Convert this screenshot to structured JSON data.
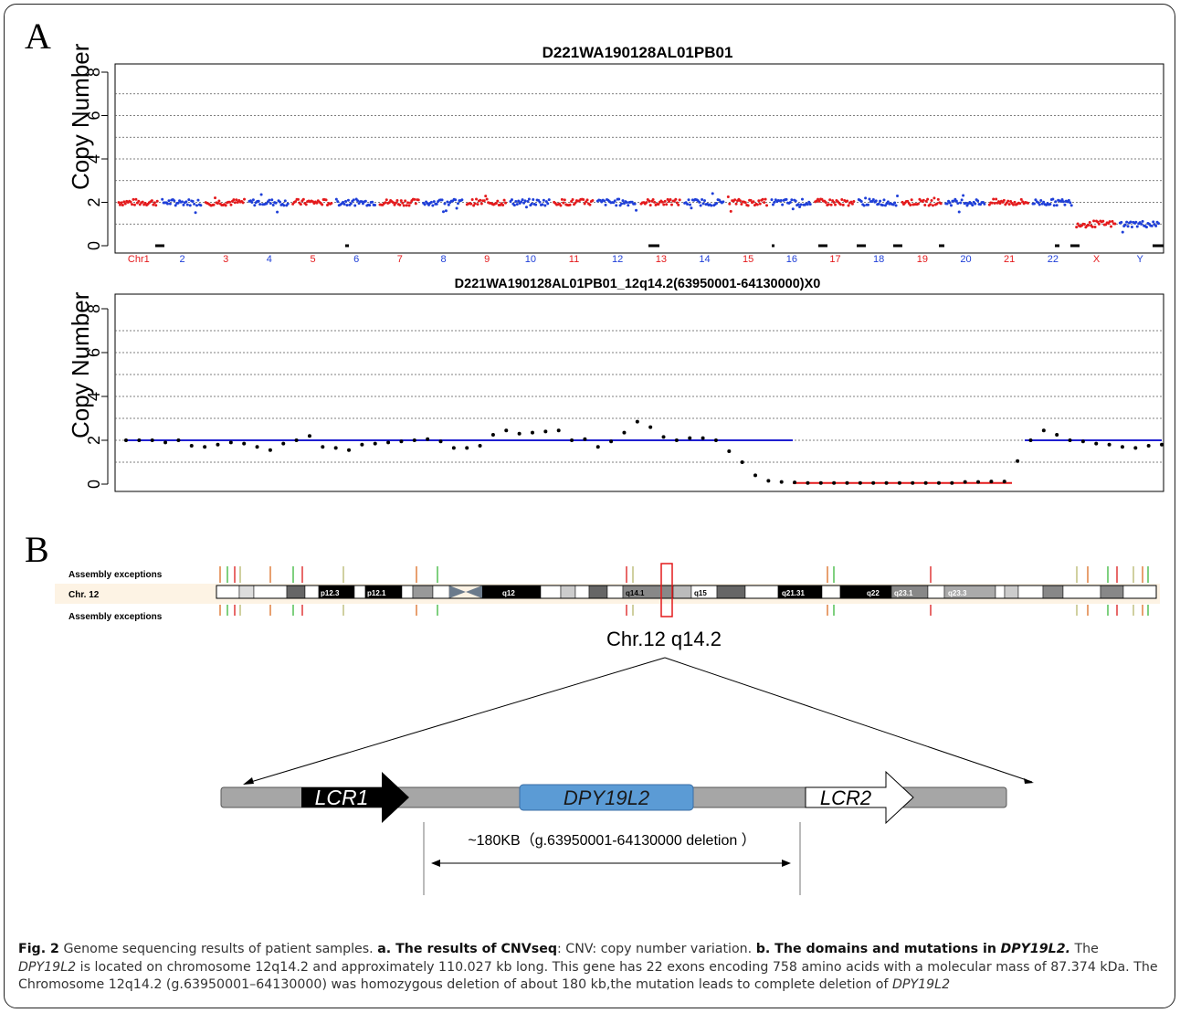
{
  "panel_a": {
    "letter": "A",
    "plot1_title": "D221WA190128AL01PB01",
    "plot2_title": "D221WA190128AL01PB01_12q14.2(63950001-64130000)X0",
    "ylabel": "Copy Number",
    "yticks": [
      "0",
      "2",
      "4",
      "6",
      "8"
    ],
    "chromosome_labels": [
      "Chr1",
      "2",
      "3",
      "4",
      "5",
      "6",
      "7",
      "8",
      "9",
      "10",
      "11",
      "12",
      "13",
      "14",
      "15",
      "16",
      "17",
      "18",
      "19",
      "20",
      "21",
      "22",
      "X",
      "Y"
    ],
    "series_colors": {
      "odd": "#e41a1c",
      "even": "#1f3fd8",
      "segment_normal": "#1f1fd0",
      "segment_deleted": "#e41a1c"
    }
  },
  "chart_data": [
    {
      "type": "scatter",
      "title": "D221WA190128AL01PB01",
      "ylabel": "Copy Number",
      "ylim": [
        0,
        8
      ],
      "categories": [
        "Chr1",
        "2",
        "3",
        "4",
        "5",
        "6",
        "7",
        "8",
        "9",
        "10",
        "11",
        "12",
        "13",
        "14",
        "15",
        "16",
        "17",
        "18",
        "19",
        "20",
        "21",
        "22",
        "X",
        "Y"
      ],
      "series": [
        {
          "values": [
            2,
            2,
            2,
            2,
            2,
            2,
            2,
            2,
            2,
            2,
            2,
            2,
            2,
            2,
            2,
            2,
            2,
            2,
            2,
            2,
            2,
            2,
            1,
            1
          ]
        }
      ]
    },
    {
      "type": "scatter",
      "title": "D221WA190128AL01PB01_12q14.2(63950001-64130000)X0",
      "ylabel": "Copy Number",
      "ylim": [
        0,
        8
      ],
      "series": [
        {
          "values": [
            2.0,
            2.0,
            2.0,
            1.9,
            2.0,
            1.75,
            1.7,
            1.8,
            1.9,
            1.85,
            1.7,
            1.55,
            1.85,
            2.0,
            2.2,
            1.7,
            1.65,
            1.55,
            1.8,
            1.85,
            1.9,
            1.95,
            2.0,
            2.05,
            1.95,
            1.65,
            1.65,
            1.75,
            2.25,
            2.45,
            2.3,
            2.35,
            2.4,
            2.45,
            2.0,
            2.05,
            1.7,
            1.95,
            2.35,
            2.85,
            2.6,
            2.15,
            2.0,
            2.1,
            2.1,
            2.0,
            1.5,
            1.0,
            0.4,
            0.15,
            0.1,
            0.08,
            0.05,
            0.05,
            0.05,
            0.05,
            0.05,
            0.05,
            0.05,
            0.05,
            0.05,
            0.05,
            0.05,
            0.05,
            0.1,
            0.1,
            0.12,
            0.12,
            1.05,
            2.0,
            2.45,
            2.25,
            2.0,
            1.95,
            1.85,
            1.8,
            1.7,
            1.65,
            1.75,
            1.8
          ]
        }
      ]
    }
  ],
  "panel_b": {
    "letter": "B",
    "assembly_top": "Assembly exceptions",
    "assembly_bottom": "Assembly exceptions",
    "chr_label": "Chr. 12",
    "bands": [
      "p12.3",
      "p12.1",
      "q12",
      "q14.1",
      "q15",
      "q21.31",
      "q22",
      "q23.1",
      "q23.3"
    ],
    "locus_label": "Chr.12 q14.2",
    "lcr1": "LCR1",
    "gene": "DPY19L2",
    "lcr2": "LCR2",
    "deletion_label": "~180KB（g.63950001-64130000 deletion ）",
    "colors": {
      "gene_fill": "#5b9bd5",
      "bar_fill": "#a6a6a6"
    }
  },
  "caption": {
    "fig": "Fig. 2",
    "title": "Genome sequencing results of patient samples.",
    "a_label": "a. The results of CNVseq",
    "a_text": ": CNV: copy number variation.",
    "b_label": "b",
    "b_bold": ". The domains and mutations in",
    "b_gene": "DPY19L2.",
    "t1": "The",
    "gene1": "DPY19L2",
    "t2": "is located on chromosome 12q14.2 and approximately 110.027 kb long. This gene has 22 exons encoding 758 amino acids with a molecular mass of 87.374 kDa. The Chromosome 12q14.2 (g.63950001–64130000) was homozygous deletion of about 180 kb,the mutation leads to complete deletion of",
    "gene2": "DPY19L2"
  }
}
